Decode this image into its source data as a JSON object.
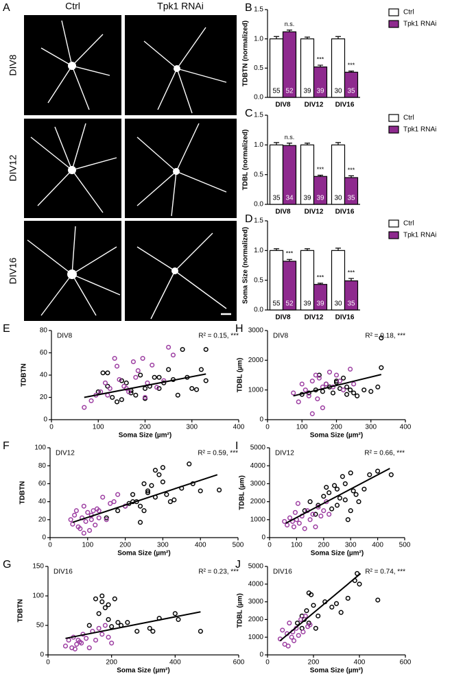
{
  "panel_a": {
    "letter": "A",
    "columns": [
      "Ctrl",
      "Tpk1 RNAi"
    ],
    "rows": [
      "DIV8",
      "DIV12",
      "DIV16"
    ]
  },
  "chart_data": [
    {
      "type": "bar",
      "letter": "B",
      "ylabel": "TDBTN (normalized)",
      "categories": [
        "DIV8",
        "DIV12",
        "DIV16"
      ],
      "ylim": [
        0,
        1.5
      ],
      "yticks": [
        {
          "value": 0,
          "label": "0.0"
        },
        {
          "value": 0.5,
          "label": "0.5"
        },
        {
          "value": 1,
          "label": "1.0"
        },
        {
          "value": 1.5,
          "label": "1.5"
        }
      ],
      "legend": "right",
      "series": [
        {
          "name": "Ctrl",
          "color": "#ffffff",
          "values": [
            1,
            1,
            1
          ],
          "errors": [
            0.04,
            0.03,
            0.04
          ],
          "counts": [
            55,
            39,
            30
          ]
        },
        {
          "name": "Tpk1 RNAi",
          "color": "#8e2a8e",
          "values": [
            1.12,
            0.52,
            0.43
          ],
          "errors": [
            0.03,
            0.03,
            0.02
          ],
          "counts": [
            52,
            39,
            35
          ],
          "annotations": [
            "n.s.",
            "***",
            "***"
          ]
        }
      ]
    },
    {
      "type": "bar",
      "letter": "C",
      "ylabel": "TDBL (normalized)",
      "categories": [
        "DIV8",
        "DIV12",
        "DIV16"
      ],
      "ylim": [
        0,
        1.5
      ],
      "yticks": [
        {
          "value": 0,
          "label": "0.0"
        },
        {
          "value": 0.5,
          "label": "0.5"
        },
        {
          "value": 1,
          "label": "1.0"
        },
        {
          "value": 1.5,
          "label": "1.5"
        }
      ],
      "legend": "right",
      "series": [
        {
          "name": "Ctrl",
          "color": "#ffffff",
          "values": [
            1,
            1,
            1
          ],
          "errors": [
            0.04,
            0.03,
            0.04
          ],
          "counts": [
            35,
            39,
            30
          ]
        },
        {
          "name": "Tpk1 RNAi",
          "color": "#8e2a8e",
          "values": [
            0.99,
            0.47,
            0.45
          ],
          "errors": [
            0.04,
            0.02,
            0.03
          ],
          "counts": [
            34,
            39,
            35
          ],
          "annotations": [
            "n.s.",
            "***",
            "***"
          ]
        }
      ]
    },
    {
      "type": "bar",
      "letter": "D",
      "ylabel": "Soma Size (normalized)",
      "categories": [
        "DIV8",
        "DIV12",
        "DIV16"
      ],
      "ylim": [
        0,
        1.5
      ],
      "yticks": [
        {
          "value": 0,
          "label": "0.0"
        },
        {
          "value": 0.5,
          "label": "0.5"
        },
        {
          "value": 1,
          "label": "1.0"
        },
        {
          "value": 1.5,
          "label": "1.5"
        }
      ],
      "legend": "right",
      "series": [
        {
          "name": "Ctrl",
          "color": "#ffffff",
          "values": [
            1,
            1,
            1
          ],
          "errors": [
            0.03,
            0.03,
            0.04
          ],
          "counts": [
            55,
            39,
            30
          ]
        },
        {
          "name": "Tpk1 RNAi",
          "color": "#8e2a8e",
          "values": [
            0.82,
            0.43,
            0.49
          ],
          "errors": [
            0.03,
            0.02,
            0.04
          ],
          "counts": [
            52,
            39,
            35
          ],
          "annotations": [
            "***",
            "***",
            "***"
          ]
        }
      ]
    },
    {
      "type": "scatter",
      "letter": "E",
      "panel_label": "DIV8",
      "annotation": "R² = 0.15, ***",
      "xlabel": "Soma Size (µm²)",
      "ylabel": "TDBTN",
      "xlim": [
        0,
        400
      ],
      "xticks": [
        0,
        100,
        200,
        300,
        400
      ],
      "ylim": [
        0,
        80
      ],
      "yticks": [
        0,
        20,
        40,
        60,
        80
      ],
      "trend": {
        "x": [
          70,
          330
        ],
        "y": [
          20,
          41
        ]
      },
      "series": [
        {
          "color": "#000000",
          "x": [
            100,
            110,
            120,
            130,
            140,
            150,
            160,
            170,
            180,
            190,
            200,
            210,
            220,
            230,
            240,
            250,
            260,
            270,
            280,
            300,
            310,
            320,
            330,
            330,
            150,
            170,
            200,
            230,
            120,
            290
          ],
          "y": [
            25,
            42,
            30,
            20,
            16,
            35,
            33,
            26,
            22,
            40,
            19,
            30,
            38,
            28,
            33,
            45,
            36,
            22,
            63,
            28,
            27,
            45,
            35,
            63,
            18,
            24,
            28,
            38,
            42,
            38
          ]
        },
        {
          "color": "#9b3ba0",
          "x": [
            70,
            85,
            95,
            105,
            115,
            125,
            135,
            145,
            155,
            165,
            175,
            185,
            195,
            205,
            215,
            225,
            240,
            260,
            120,
            140,
            160,
            180,
            200,
            250
          ],
          "y": [
            11,
            17,
            22,
            25,
            33,
            28,
            55,
            36,
            30,
            25,
            52,
            44,
            55,
            33,
            49,
            29,
            35,
            58,
            22,
            48,
            28,
            38,
            20,
            65
          ]
        }
      ]
    },
    {
      "type": "scatter",
      "letter": "F",
      "panel_label": "DIV12",
      "annotation": "R² = 0.59, ***",
      "xlabel": "Soma Size (µm²)",
      "ylabel": "TDBTN",
      "xlim": [
        0,
        500
      ],
      "xticks": [
        0,
        100,
        200,
        300,
        400,
        500
      ],
      "ylim": [
        0,
        100
      ],
      "yticks": [
        0,
        20,
        40,
        60,
        80,
        100
      ],
      "trend": {
        "x": [
          60,
          445
        ],
        "y": [
          17,
          70
        ]
      },
      "series": [
        {
          "color": "#000000",
          "x": [
            150,
            180,
            200,
            210,
            220,
            230,
            240,
            250,
            250,
            260,
            270,
            280,
            280,
            290,
            300,
            300,
            310,
            320,
            330,
            350,
            370,
            380,
            400,
            450,
            260,
            240,
            220
          ],
          "y": [
            22,
            30,
            35,
            38,
            48,
            40,
            17,
            30,
            60,
            52,
            58,
            45,
            75,
            70,
            62,
            78,
            48,
            40,
            42,
            55,
            82,
            60,
            52,
            53,
            50,
            35,
            40
          ]
        },
        {
          "color": "#9b3ba0",
          "x": [
            55,
            60,
            65,
            70,
            75,
            80,
            85,
            90,
            95,
            100,
            105,
            110,
            115,
            120,
            125,
            130,
            140,
            150,
            160,
            170,
            180,
            200,
            90,
            110,
            130
          ],
          "y": [
            20,
            15,
            25,
            30,
            12,
            10,
            22,
            35,
            18,
            28,
            8,
            25,
            30,
            14,
            32,
            22,
            45,
            20,
            38,
            40,
            48,
            35,
            5,
            20,
            30
          ]
        }
      ]
    },
    {
      "type": "scatter",
      "letter": "G",
      "panel_label": "DIV16",
      "annotation": "R² = 0.23, ***",
      "xlabel": "Soma Size (µm²)",
      "ylabel": "TDBTN",
      "xlim": [
        0,
        600
      ],
      "xticks": [
        0,
        200,
        400,
        600
      ],
      "ylim": [
        0,
        150
      ],
      "yticks": [
        0,
        50,
        100,
        150
      ],
      "trend": {
        "x": [
          55,
          480
        ],
        "y": [
          28,
          73
        ]
      },
      "series": [
        {
          "color": "#000000",
          "x": [
            130,
            150,
            160,
            170,
            180,
            190,
            200,
            210,
            220,
            230,
            250,
            280,
            320,
            330,
            350,
            400,
            410,
            480,
            170,
            190
          ],
          "y": [
            50,
            95,
            70,
            90,
            80,
            60,
            48,
            95,
            55,
            50,
            55,
            40,
            45,
            40,
            62,
            70,
            60,
            40,
            100,
            85
          ]
        },
        {
          "color": "#9b3ba0",
          "x": [
            55,
            65,
            75,
            80,
            90,
            100,
            110,
            120,
            130,
            140,
            150,
            160,
            170,
            180,
            190,
            200,
            85,
            95,
            105
          ],
          "y": [
            15,
            25,
            12,
            30,
            18,
            22,
            35,
            28,
            12,
            40,
            25,
            45,
            35,
            50,
            30,
            20,
            10,
            25,
            20
          ]
        }
      ]
    },
    {
      "type": "scatter",
      "letter": "H",
      "panel_label": "DIV8",
      "annotation": "R² = 0.18, ***",
      "xlabel": "Soma Size (µm²)",
      "ylabel": "TDBL (µm)",
      "xlim": [
        0,
        400
      ],
      "xticks": [
        0,
        100,
        200,
        300,
        400
      ],
      "ylim": [
        0,
        3000
      ],
      "yticks": [
        0,
        1000,
        2000,
        3000
      ],
      "trend": {
        "x": [
          75,
          330
        ],
        "y": [
          800,
          1520
        ]
      },
      "series": [
        {
          "color": "#000000",
          "x": [
            100,
            120,
            140,
            160,
            170,
            180,
            190,
            200,
            210,
            220,
            230,
            240,
            250,
            260,
            280,
            300,
            320,
            330,
            330,
            150,
            200,
            230
          ],
          "y": [
            850,
            900,
            1000,
            950,
            1200,
            1100,
            900,
            1300,
            1050,
            1400,
            1100,
            1000,
            900,
            800,
            1000,
            950,
            1100,
            1750,
            2750,
            1500,
            1250,
            850
          ]
        },
        {
          "color": "#9b3ba0",
          "x": [
            75,
            90,
            100,
            110,
            120,
            130,
            140,
            150,
            160,
            170,
            180,
            190,
            200,
            210,
            220,
            240,
            250,
            130,
            145,
            160
          ],
          "y": [
            900,
            600,
            1200,
            1000,
            800,
            1300,
            1500,
            1400,
            400,
            1200,
            1600,
            1100,
            1500,
            1300,
            1000,
            1700,
            1200,
            200,
            700,
            1100
          ]
        }
      ]
    },
    {
      "type": "scatter",
      "letter": "I",
      "panel_label": "DIV12",
      "annotation": "R² = 0.66, ***",
      "xlabel": "Soma Size (µm²)",
      "ylabel": "TDBL (µm)",
      "xlim": [
        0,
        500
      ],
      "xticks": [
        0,
        100,
        200,
        300,
        400,
        500
      ],
      "ylim": [
        0,
        5000
      ],
      "yticks": [
        0,
        1000,
        2000,
        3000,
        4000,
        5000
      ],
      "trend": {
        "x": [
          60,
          445
        ],
        "y": [
          800,
          3850
        ]
      },
      "series": [
        {
          "color": "#000000",
          "x": [
            130,
            150,
            170,
            180,
            200,
            210,
            220,
            230,
            240,
            250,
            260,
            270,
            280,
            290,
            300,
            310,
            320,
            330,
            350,
            370,
            400,
            450,
            250,
            280,
            300
          ],
          "y": [
            1500,
            2000,
            1300,
            1800,
            2300,
            2800,
            2500,
            1600,
            2900,
            2700,
            2200,
            3400,
            2100,
            1000,
            3600,
            2600,
            2400,
            2000,
            2700,
            3500,
            3700,
            3500,
            1800,
            3000,
            1500
          ]
        },
        {
          "color": "#9b3ba0",
          "x": [
            55,
            65,
            75,
            85,
            95,
            100,
            110,
            120,
            130,
            140,
            150,
            160,
            170,
            180,
            190,
            200,
            210,
            220,
            90,
            105
          ],
          "y": [
            900,
            700,
            1100,
            900,
            1400,
            1000,
            800,
            1200,
            500,
            1500,
            1000,
            1300,
            600,
            1700,
            1200,
            1500,
            2000,
            1300,
            600,
            1900
          ]
        }
      ]
    },
    {
      "type": "scatter",
      "letter": "J",
      "panel_label": "DIV16",
      "annotation": "R² = 0.74, ***",
      "xlabel": "Soma Size (µm²)",
      "ylabel": "TDBL (µm)",
      "xlim": [
        0,
        600
      ],
      "xticks": [
        0,
        200,
        400,
        600
      ],
      "ylim": [
        0,
        5000
      ],
      "yticks": [
        0,
        1000,
        2000,
        3000,
        4000,
        5000
      ],
      "trend": {
        "x": [
          55,
          405
        ],
        "y": [
          800,
          4600
        ]
      },
      "series": [
        {
          "color": "#000000",
          "x": [
            130,
            150,
            160,
            170,
            180,
            190,
            200,
            210,
            220,
            250,
            280,
            300,
            320,
            350,
            380,
            390,
            400,
            480,
            180,
            150
          ],
          "y": [
            1800,
            1500,
            2000,
            2500,
            3500,
            3400,
            2800,
            1500,
            2200,
            3000,
            2700,
            2900,
            2400,
            3200,
            4200,
            4600,
            4000,
            3100,
            1800,
            2200
          ]
        },
        {
          "color": "#9b3ba0",
          "x": [
            55,
            65,
            75,
            85,
            95,
            105,
            115,
            125,
            135,
            145,
            155,
            165,
            175,
            185,
            90,
            110
          ],
          "y": [
            900,
            1400,
            600,
            1200,
            1800,
            1000,
            800,
            1500,
            1100,
            2000,
            1300,
            2200,
            1600,
            1700,
            500,
            1300
          ]
        }
      ]
    }
  ]
}
